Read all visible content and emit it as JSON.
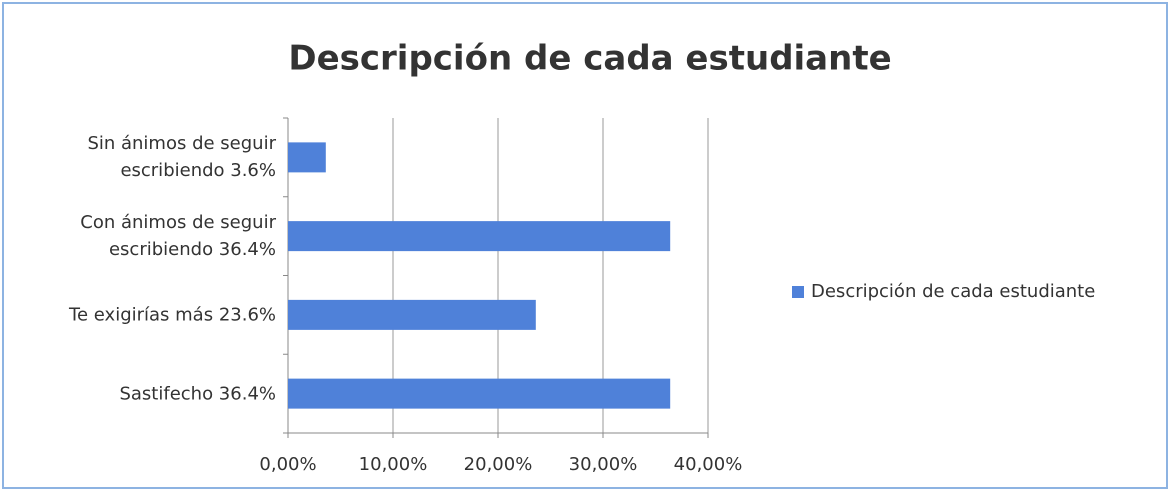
{
  "chart_data": {
    "type": "bar",
    "orientation": "horizontal",
    "title": "Descripción de  cada estudiante",
    "categories": [
      "Sin ánimos de seguir escribiendo 3.6%",
      "Con ánimos de seguir escribiendo 36.4%",
      "Te exigirías más 23.6%",
      "Sastifecho 36.4%"
    ],
    "series": [
      {
        "name": "Descripción de cada estudiante",
        "color": "#4f81d9",
        "values": [
          3.6,
          36.4,
          23.6,
          36.4
        ]
      }
    ],
    "xlim": [
      0,
      40
    ],
    "xticks": [
      {
        "value": 0,
        "label": "0,00%"
      },
      {
        "value": 10,
        "label": "10,00%"
      },
      {
        "value": 20,
        "label": "20,00%"
      },
      {
        "value": 30,
        "label": "30,00%"
      },
      {
        "value": 40,
        "label": "40,00%"
      }
    ],
    "grid": true,
    "legend": "right"
  }
}
